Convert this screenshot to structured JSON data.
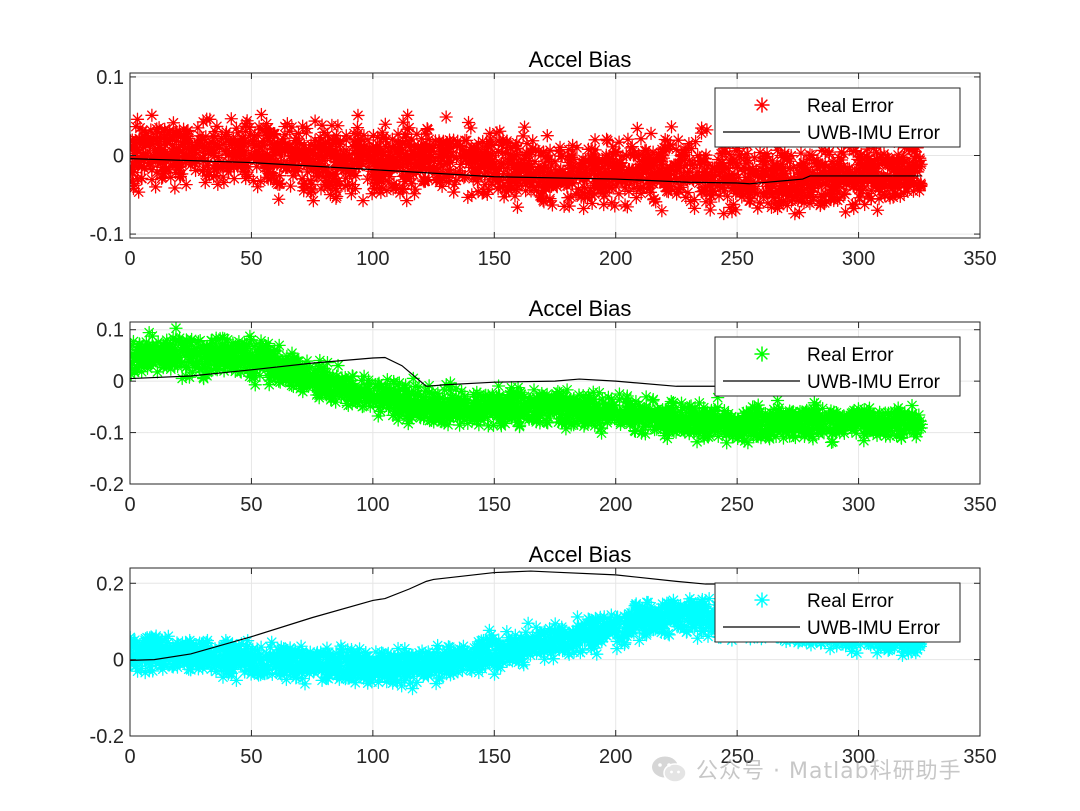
{
  "chart_data": [
    {
      "type": "scatter",
      "title": "Accel Bias",
      "xlim": [
        0,
        350
      ],
      "ylim": [
        -0.105,
        0.105
      ],
      "xticks": [
        0,
        50,
        100,
        150,
        200,
        250,
        300,
        350
      ],
      "yticks": [
        -0.1,
        0,
        0.1
      ],
      "ytick_labels": [
        "-0.1",
        "0",
        "0.1"
      ],
      "grid": true,
      "legend_position": "top-right",
      "series": [
        {
          "name": "Real Error",
          "kind": "marker-band",
          "marker": "asterisk",
          "color": "#ff0000",
          "x": [
            0,
            25,
            50,
            75,
            100,
            125,
            150,
            175,
            200,
            225,
            250,
            275,
            300,
            326
          ],
          "y_center": [
            0.0,
            0.005,
            0.0,
            -0.005,
            -0.008,
            0.0,
            -0.015,
            -0.025,
            -0.02,
            -0.02,
            -0.025,
            -0.03,
            -0.025,
            -0.02
          ],
          "half_width": [
            0.055,
            0.055,
            0.058,
            0.055,
            0.055,
            0.058,
            0.055,
            0.055,
            0.055,
            0.055,
            0.055,
            0.055,
            0.05,
            0.05
          ]
        },
        {
          "name": "UWB-IMU  Error",
          "kind": "line",
          "color": "#000000",
          "x": [
            0,
            50,
            100,
            150,
            200,
            230,
            250,
            255,
            270,
            277,
            280,
            300,
            326
          ],
          "y": [
            -0.004,
            -0.009,
            -0.018,
            -0.027,
            -0.03,
            -0.034,
            -0.035,
            -0.036,
            -0.032,
            -0.03,
            -0.026,
            -0.026,
            -0.026
          ]
        }
      ]
    },
    {
      "type": "scatter",
      "title": "Accel Bias",
      "xlim": [
        0,
        350
      ],
      "ylim": [
        -0.2,
        0.115
      ],
      "xticks": [
        0,
        50,
        100,
        150,
        200,
        250,
        300,
        350
      ],
      "yticks": [
        -0.2,
        -0.1,
        0,
        0.1
      ],
      "ytick_labels": [
        "-0.2",
        "-0.1",
        "0",
        "0.1"
      ],
      "grid": true,
      "legend_position": "top-right",
      "series": [
        {
          "name": "Real Error",
          "kind": "marker-band",
          "marker": "asterisk",
          "color": "#00ff00",
          "x": [
            0,
            25,
            50,
            75,
            100,
            125,
            150,
            175,
            200,
            225,
            250,
            275,
            300,
            326
          ],
          "y_center": [
            0.05,
            0.05,
            0.045,
            0.005,
            -0.03,
            -0.05,
            -0.05,
            -0.05,
            -0.06,
            -0.075,
            -0.085,
            -0.08,
            -0.08,
            -0.085
          ],
          "half_width": [
            0.05,
            0.05,
            0.05,
            0.045,
            0.045,
            0.045,
            0.045,
            0.045,
            0.045,
            0.045,
            0.045,
            0.045,
            0.045,
            0.045
          ]
        },
        {
          "name": "UWB-IMU  Error",
          "kind": "line",
          "color": "#000000",
          "x": [
            0,
            25,
            50,
            75,
            100,
            105,
            112,
            122,
            130,
            150,
            175,
            185,
            200,
            225,
            250,
            326
          ],
          "y": [
            0.005,
            0.01,
            0.022,
            0.035,
            0.045,
            0.046,
            0.03,
            -0.01,
            -0.007,
            -0.002,
            0.0,
            0.004,
            0.0,
            -0.01,
            -0.01,
            -0.01
          ]
        }
      ]
    },
    {
      "type": "scatter",
      "title": "Accel Bias",
      "xlim": [
        0,
        350
      ],
      "ylim": [
        -0.2,
        0.24
      ],
      "xticks": [
        0,
        50,
        100,
        150,
        200,
        250,
        300,
        350
      ],
      "yticks": [
        -0.2,
        0,
        0.2
      ],
      "ytick_labels": [
        "-0.2",
        "0",
        "0.2"
      ],
      "grid": true,
      "legend_position": "top-right",
      "series": [
        {
          "name": "Real Error",
          "kind": "marker-band",
          "marker": "asterisk",
          "color": "#00ffff",
          "x": [
            0,
            25,
            50,
            75,
            100,
            125,
            150,
            175,
            200,
            215,
            225,
            250,
            275,
            300,
            326
          ],
          "y_center": [
            0.02,
            0.01,
            0.0,
            -0.01,
            -0.02,
            -0.01,
            0.02,
            0.05,
            0.08,
            0.11,
            0.12,
            0.1,
            0.08,
            0.06,
            0.05
          ],
          "half_width": [
            0.06,
            0.06,
            0.06,
            0.06,
            0.06,
            0.06,
            0.06,
            0.06,
            0.06,
            0.06,
            0.06,
            0.06,
            0.05,
            0.05,
            0.05
          ]
        },
        {
          "name": "UWB-IMU  Error",
          "kind": "line",
          "color": "#000000",
          "x": [
            0,
            10,
            25,
            50,
            75,
            100,
            105,
            115,
            122,
            125,
            150,
            165,
            175,
            200,
            225,
            237,
            250,
            300,
            326
          ],
          "y": [
            -0.002,
            0.0,
            0.015,
            0.06,
            0.11,
            0.155,
            0.16,
            0.185,
            0.205,
            0.21,
            0.228,
            0.232,
            0.229,
            0.222,
            0.205,
            0.198,
            0.198,
            0.198,
            0.198
          ]
        }
      ]
    }
  ],
  "watermark": {
    "text": "公众号 · Matlab科研助手",
    "icon": "wechat-icon"
  }
}
